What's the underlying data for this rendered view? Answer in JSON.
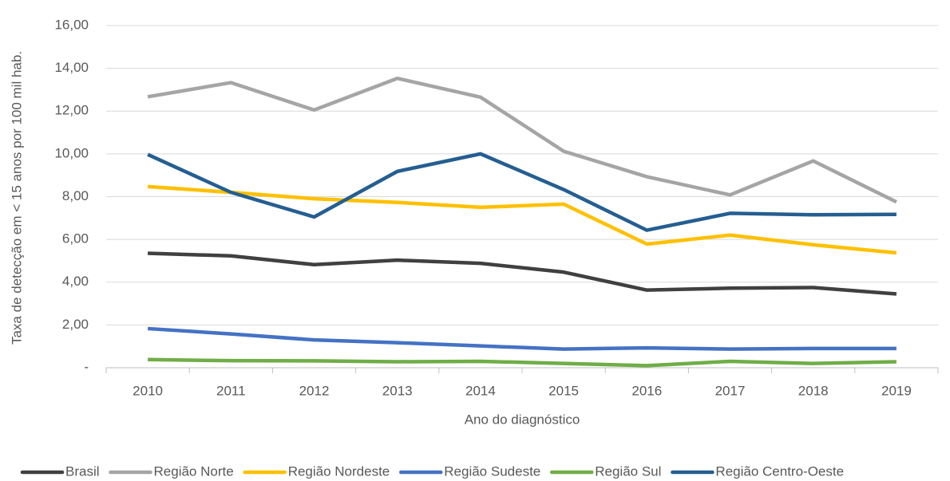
{
  "chart_data": {
    "type": "line",
    "ylabel": "Taxa de detecção em < 15 anos por 100 mil hab.",
    "xlabel": "Ano do diagnóstico",
    "categories": [
      "2010",
      "2011",
      "2012",
      "2013",
      "2014",
      "2015",
      "2016",
      "2017",
      "2018",
      "2019"
    ],
    "series": [
      {
        "name": "Brasil",
        "color": "#404040",
        "values": [
          5.35,
          5.23,
          4.82,
          5.03,
          4.88,
          4.47,
          3.63,
          3.72,
          3.75,
          3.45
        ]
      },
      {
        "name": "Região Norte",
        "color": "#a5a5a5",
        "values": [
          12.67,
          13.33,
          12.05,
          13.53,
          12.65,
          10.12,
          8.93,
          8.08,
          9.67,
          7.75
        ]
      },
      {
        "name": "Região Nordeste",
        "color": "#ffc000",
        "values": [
          8.47,
          8.2,
          7.9,
          7.73,
          7.5,
          7.65,
          5.78,
          6.2,
          5.75,
          5.37
        ]
      },
      {
        "name": "Região Sudeste",
        "color": "#4472c4",
        "values": [
          1.83,
          1.58,
          1.3,
          1.17,
          1.02,
          0.87,
          0.93,
          0.87,
          0.9,
          0.9
        ]
      },
      {
        "name": "Região Sul",
        "color": "#70ad47",
        "values": [
          0.38,
          0.33,
          0.32,
          0.28,
          0.3,
          0.2,
          0.1,
          0.3,
          0.2,
          0.28
        ]
      },
      {
        "name": "Região Centro-Oeste",
        "color": "#255e91",
        "values": [
          9.97,
          8.2,
          7.05,
          9.18,
          10.0,
          8.33,
          6.43,
          7.22,
          7.15,
          7.17
        ]
      }
    ],
    "ylim": [
      0,
      16
    ],
    "yticks": [
      {
        "value": 0,
        "label": "-"
      },
      {
        "value": 2,
        "label": "2,00"
      },
      {
        "value": 4,
        "label": "4,00"
      },
      {
        "value": 6,
        "label": "6,00"
      },
      {
        "value": 8,
        "label": "8,00"
      },
      {
        "value": 10,
        "label": "10,00"
      },
      {
        "value": 12,
        "label": "12,00"
      },
      {
        "value": 14,
        "label": "14,00"
      },
      {
        "value": 16,
        "label": "16,00"
      }
    ],
    "grid": true,
    "legend": "bottom"
  }
}
